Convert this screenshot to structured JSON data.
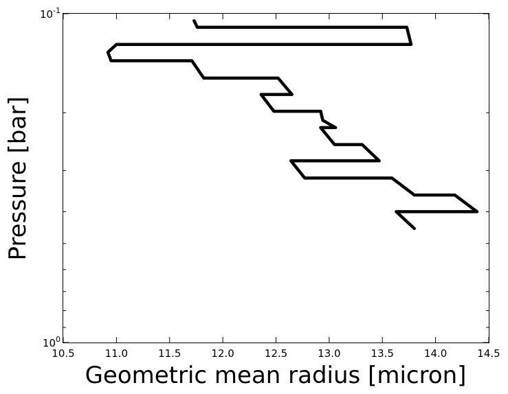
{
  "chart_data": {
    "type": "line",
    "title": "",
    "xlabel": "Geometric mean radius [micron]",
    "ylabel": "Pressure [bar]",
    "xlim": [
      10.5,
      14.5
    ],
    "ylim": [
      1.0,
      0.1
    ],
    "yscale": "log",
    "y_inverted": true,
    "grid": false,
    "legend": "none",
    "line_color": "#000000",
    "x_ticks": [
      "10.5",
      "11.0",
      "11.5",
      "12.0",
      "12.5",
      "13.0",
      "13.5",
      "14.0",
      "14.5"
    ],
    "y_ticks": [
      {
        "base": "10",
        "exp": "-1"
      },
      {
        "base": "10",
        "exp": "0"
      }
    ],
    "series": [
      {
        "x": [
          11.73,
          11.76,
          13.73,
          13.77,
          11.0,
          10.92,
          10.95,
          11.71,
          11.82,
          12.52,
          12.65,
          12.36,
          12.48,
          12.92,
          12.94,
          13.06,
          12.92,
          13.05,
          13.31,
          13.47,
          12.64,
          12.77,
          13.59,
          13.8,
          14.18,
          14.39,
          13.63,
          13.8
        ],
        "y": [
          0.105,
          0.11,
          0.11,
          0.124,
          0.124,
          0.131,
          0.139,
          0.139,
          0.157,
          0.157,
          0.176,
          0.176,
          0.198,
          0.198,
          0.211,
          0.222,
          0.222,
          0.25,
          0.25,
          0.28,
          0.28,
          0.316,
          0.316,
          0.356,
          0.356,
          0.4,
          0.4,
          0.45
        ]
      }
    ]
  }
}
